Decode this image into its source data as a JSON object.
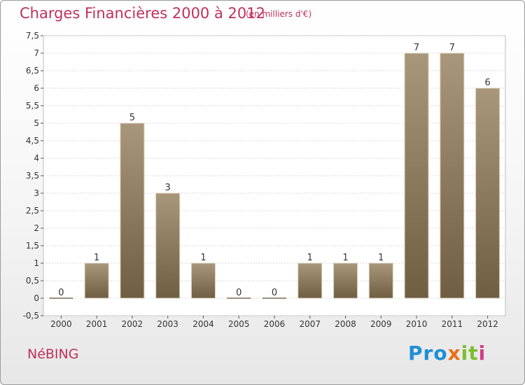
{
  "title": "Charges Financières 2000 à 2012",
  "unit_note": "(en milliers d'€)",
  "commune": "NéBING",
  "logo": {
    "text": "Proxiti",
    "parts": [
      "Pro",
      "x",
      "it",
      "i"
    ]
  },
  "colors": {
    "title": "#c0305d",
    "bar_top": "#a8977a",
    "bar_bottom": "#6f5e42",
    "grid": "#d8d8d8"
  },
  "chart_data": {
    "type": "bar",
    "title": "Charges Financières 2000 à 2012",
    "subtitle": "(en milliers d'€)",
    "categories": [
      "2000",
      "2001",
      "2002",
      "2003",
      "2004",
      "2005",
      "2006",
      "2007",
      "2008",
      "2009",
      "2010",
      "2011",
      "2012"
    ],
    "values": [
      0,
      1,
      5,
      3,
      1,
      0,
      0,
      1,
      1,
      1,
      7,
      7,
      6
    ],
    "data_labels": [
      "0",
      "1",
      "5",
      "3",
      "1",
      "0",
      "0",
      "1",
      "1",
      "1",
      "7",
      "7",
      "6"
    ],
    "ylim": [
      -0.5,
      7.5
    ],
    "yticks": [
      -0.5,
      0,
      0.5,
      1,
      1.5,
      2,
      2.5,
      3,
      3.5,
      4,
      4.5,
      5,
      5.5,
      6,
      6.5,
      7,
      7.5
    ],
    "ytick_labels": [
      "-0,5",
      "0",
      "0,5",
      "1",
      "1,5",
      "2",
      "2,5",
      "3",
      "3,5",
      "4",
      "4,5",
      "5",
      "5,5",
      "6",
      "6,5",
      "7",
      "7,5"
    ],
    "grid": true,
    "xlabel": "",
    "ylabel": ""
  }
}
